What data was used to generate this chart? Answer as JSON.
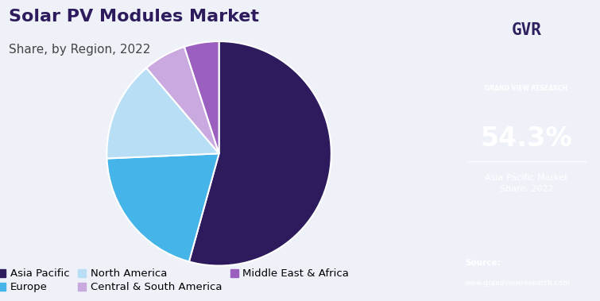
{
  "title": "Solar PV Modules Market",
  "subtitle": "Share, by Region, 2022",
  "labels": [
    "Asia Pacific",
    "Europe",
    "North America",
    "Central & South America",
    "Middle East & Africa"
  ],
  "values": [
    54.3,
    20.0,
    14.5,
    6.2,
    5.0
  ],
  "colors": [
    "#2d1b5e",
    "#45b4e8",
    "#b8def5",
    "#c9a9e0",
    "#9b5fc0"
  ],
  "startangle": 90,
  "highlight_label": "54.3%",
  "highlight_sublabel": "Asia Pacific Market\nShare, 2022",
  "sidebar_bg": "#2e1f5e",
  "main_bg": "#eef2f8",
  "source_bg": "#4a6fa0",
  "legend_fontsize": 9.5,
  "title_fontsize": 16,
  "subtitle_fontsize": 11
}
